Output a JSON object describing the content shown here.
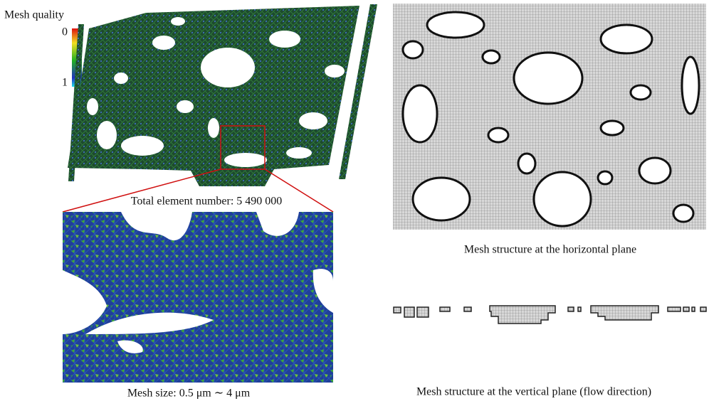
{
  "legend": {
    "title": "Mesh quality",
    "top_label": "0",
    "bottom_label": "1"
  },
  "panels": [
    {
      "caption": "Total element number: 5 490 000"
    },
    {
      "caption": "Mesh size: 0.5 μm ∼ 4 μm"
    },
    {
      "caption": "Mesh structure at the horizontal plane"
    },
    {
      "caption": "Mesh structure at the vertical plane (flow direction)"
    }
  ]
}
